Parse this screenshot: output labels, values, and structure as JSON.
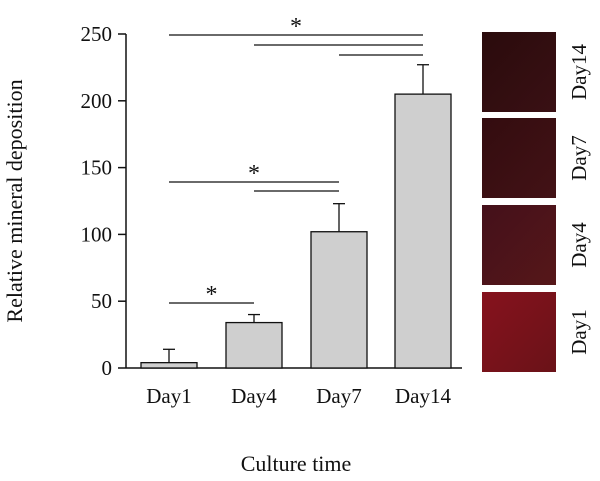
{
  "chart_data": {
    "type": "bar",
    "categories": [
      "Day1",
      "Day4",
      "Day7",
      "Day14"
    ],
    "values": [
      4,
      34,
      102,
      205
    ],
    "error": [
      10,
      6,
      21,
      22
    ],
    "xlabel": "Culture time",
    "ylabel": "Relative mineral deposition",
    "ylim": [
      0,
      250
    ],
    "yticks": [
      0,
      50,
      100,
      150,
      200,
      250
    ],
    "grid": false,
    "bar_color": "#cfcfcf",
    "significance": [
      {
        "from": 0,
        "to": 1,
        "label": "*"
      },
      {
        "from": 0,
        "to": 2,
        "label": "*"
      },
      {
        "from": 1,
        "to": 2,
        "label": ""
      },
      {
        "from": 0,
        "to": 3,
        "label": "*"
      },
      {
        "from": 1,
        "to": 3,
        "label": ""
      },
      {
        "from": 2,
        "to": 3,
        "label": ""
      }
    ],
    "stain_images": [
      {
        "label": "Day14",
        "color": "#2f0c0e"
      },
      {
        "label": "Day7",
        "color": "#3a0d10"
      },
      {
        "label": "Day4",
        "color": "#4a1216"
      },
      {
        "label": "Day1",
        "color": "#7a141c"
      }
    ]
  }
}
